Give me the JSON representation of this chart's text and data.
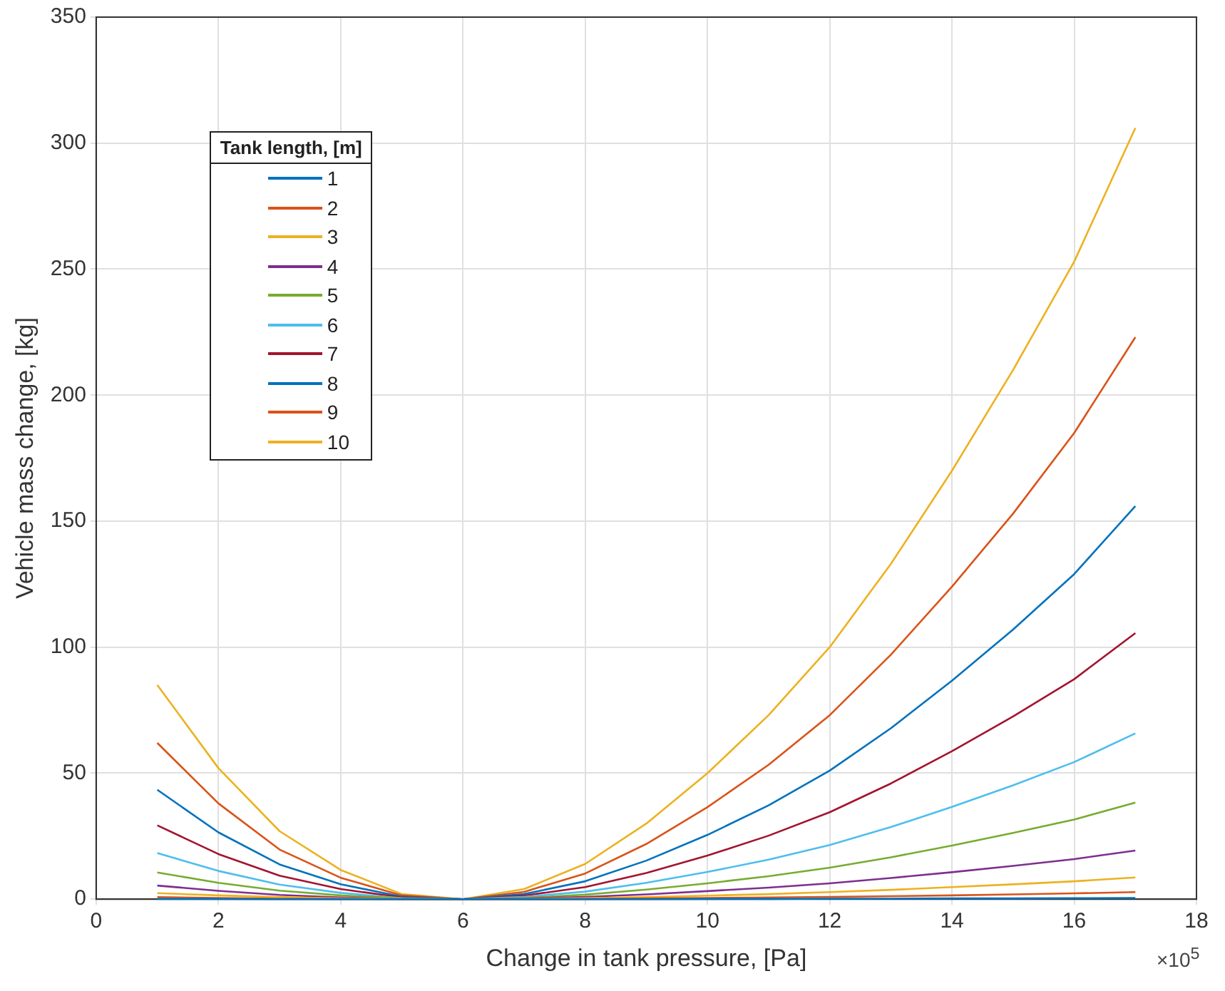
{
  "chart_data": {
    "type": "line",
    "xlabel": "Change in tank pressure, [Pa]",
    "ylabel": "Vehicle mass change, [kg]",
    "legend_title": "Tank length, [m]",
    "legend": "top left",
    "grid": true,
    "marker": "none",
    "line_style": "solid",
    "x": [
      1,
      2,
      3,
      4,
      5,
      6,
      7,
      8,
      9,
      10,
      11,
      12,
      13,
      14,
      15,
      16,
      17
    ],
    "xlim": [
      0,
      18
    ],
    "xticks": [
      0,
      2,
      4,
      6,
      8,
      10,
      12,
      14,
      16,
      18
    ],
    "ylim": [
      0,
      350
    ],
    "yticks": [
      0,
      50,
      100,
      150,
      200,
      250,
      300,
      350
    ],
    "annotations": [
      "×10$^{5}$"
    ],
    "series": [
      {
        "name": "1",
        "color": "#0072bd",
        "values": [
          0.1,
          0.1,
          0,
          0,
          0,
          0,
          0,
          0,
          0,
          0.1,
          0.1,
          0.2,
          0.2,
          0.3,
          0.3,
          0.4,
          0.5
        ]
      },
      {
        "name": "2",
        "color": "#d95319",
        "values": [
          0.8,
          0.5,
          0.2,
          0.1,
          0,
          0,
          0,
          0.1,
          0.3,
          0.5,
          0.7,
          0.9,
          1.2,
          1.5,
          1.9,
          2.3,
          2.8
        ]
      },
      {
        "name": "3",
        "color": "#edb120",
        "values": [
          2.4,
          1.5,
          0.8,
          0.3,
          0.1,
          0,
          0.1,
          0.4,
          0.8,
          1.4,
          2,
          2.8,
          3.7,
          4.8,
          5.9,
          7.1,
          8.6
        ]
      },
      {
        "name": "4",
        "color": "#7e2f8e",
        "values": [
          5.4,
          3.3,
          1.7,
          0.7,
          0.1,
          0,
          0.3,
          0.9,
          1.9,
          3.2,
          4.6,
          6.3,
          8.4,
          10.7,
          13.2,
          15.9,
          19.3
        ]
      },
      {
        "name": "5",
        "color": "#77ac30",
        "values": [
          10.6,
          6.5,
          3.4,
          1.5,
          0.3,
          0,
          0.5,
          1.8,
          3.8,
          6.3,
          9.1,
          12.5,
          16.6,
          21.3,
          26.3,
          31.6,
          38.3
        ]
      },
      {
        "name": "6",
        "color": "#4dbeee",
        "values": [
          18.3,
          11.2,
          5.8,
          2.5,
          0.4,
          0,
          0.9,
          3,
          6.5,
          10.8,
          15.7,
          21.5,
          28.6,
          36.6,
          45.2,
          54.4,
          65.8
        ]
      },
      {
        "name": "7",
        "color": "#a2142f",
        "values": [
          29.3,
          17.9,
          9.3,
          4,
          0.7,
          0,
          1.4,
          4.8,
          10.4,
          17.3,
          25.2,
          34.5,
          45.9,
          58.7,
          72.5,
          87.3,
          105.6
        ]
      },
      {
        "name": "8",
        "color": "#0072bd",
        "values": [
          43.4,
          26.5,
          13.8,
          5.9,
          1,
          0,
          2,
          7.1,
          15.3,
          25.5,
          37.2,
          51,
          67.8,
          86.7,
          107,
          129,
          156
        ]
      },
      {
        "name": "9",
        "color": "#d95319",
        "values": [
          62,
          38,
          19.7,
          8.5,
          1.5,
          0,
          2.9,
          10.2,
          21.9,
          36.5,
          53.3,
          73,
          97,
          124,
          153,
          185,
          223
        ]
      },
      {
        "name": "10",
        "color": "#edb120",
        "values": [
          85,
          52,
          27,
          11.6,
          2,
          0,
          4,
          14,
          30,
          50,
          73,
          100,
          133,
          170,
          210,
          253,
          306
        ]
      }
    ]
  }
}
